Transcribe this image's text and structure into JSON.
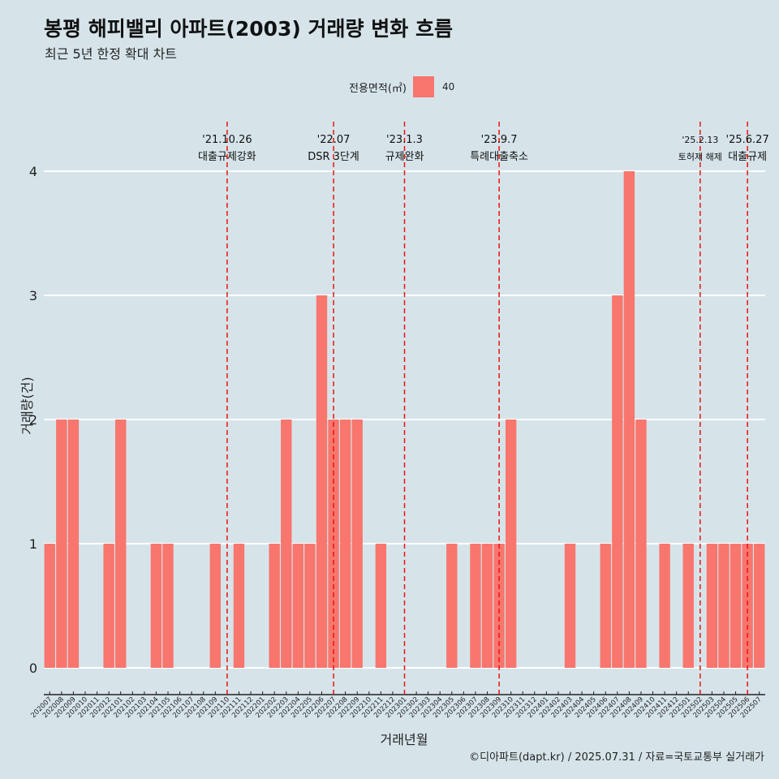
{
  "title": "봉평 해피밸리 아파트(2003) 거래량 변화 흐름",
  "subtitle": "최근 5년 한정 확대 차트",
  "legend": {
    "title": "전용면적(㎡)",
    "label": "40",
    "color": "#f8766d"
  },
  "caption": "©디아파트(dapt.kr) / 2025.07.31 / 자료=국토교통부 실거래가",
  "chart_data": {
    "type": "bar",
    "xlabel": "거래년월",
    "ylabel": "거래량(건)",
    "ylim": [
      0,
      4
    ],
    "yticks": [
      0,
      1,
      2,
      3,
      4
    ],
    "grid": true,
    "legend_position": "top",
    "bar_color": "#f8766d",
    "categories": [
      "202007",
      "202008",
      "202009",
      "202010",
      "202011",
      "202012",
      "202101",
      "202102",
      "202103",
      "202104",
      "202105",
      "202106",
      "202107",
      "202108",
      "202109",
      "202110",
      "202111",
      "202112",
      "202201",
      "202202",
      "202203",
      "202204",
      "202205",
      "202206",
      "202207",
      "202208",
      "202209",
      "202210",
      "202211",
      "202212",
      "202301",
      "202302",
      "202303",
      "202304",
      "202305",
      "202306",
      "202307",
      "202308",
      "202309",
      "202310",
      "202311",
      "202312",
      "202401",
      "202402",
      "202403",
      "202404",
      "202405",
      "202406",
      "202407",
      "202408",
      "202409",
      "202410",
      "202411",
      "202412",
      "202501",
      "202502",
      "202503",
      "202504",
      "202505",
      "202506",
      "202507"
    ],
    "series": [
      {
        "name": "40",
        "values": [
          1,
          2,
          2,
          0,
          0,
          1,
          2,
          0,
          0,
          1,
          1,
          0,
          0,
          0,
          1,
          0,
          1,
          0,
          0,
          1,
          2,
          1,
          1,
          3,
          2,
          2,
          2,
          0,
          1,
          0,
          0,
          0,
          0,
          0,
          1,
          0,
          1,
          1,
          1,
          2,
          0,
          0,
          0,
          0,
          1,
          0,
          0,
          1,
          3,
          4,
          2,
          0,
          1,
          0,
          1,
          0,
          1,
          1,
          1,
          1,
          1
        ]
      }
    ],
    "annotations": [
      {
        "date": "'21.10.26",
        "label": "대출규제강화",
        "x": "202110"
      },
      {
        "date": "'22.07",
        "label": "DSR 3단계",
        "x": "202207"
      },
      {
        "date": "'23.1.3",
        "label": "규제완화",
        "x": "202301"
      },
      {
        "date": "'23.9.7",
        "label": "특례대출축소",
        "x": "202309"
      },
      {
        "date": "'25.2.13",
        "label": "토허제 해제",
        "x": "202502"
      },
      {
        "date": "'25.6.27",
        "label": "대출규제",
        "x": "202506"
      }
    ]
  }
}
